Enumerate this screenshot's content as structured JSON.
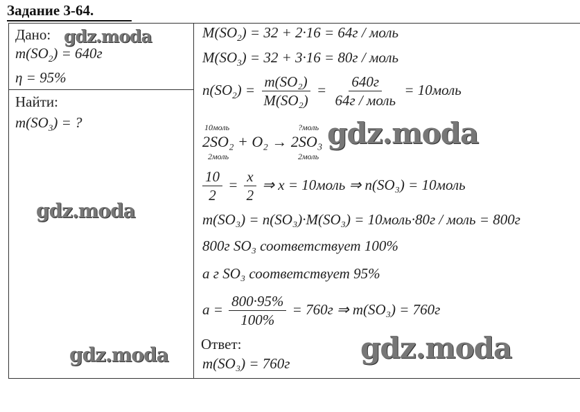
{
  "title": "Задание 3-64.",
  "given": {
    "label": "Дано:",
    "line1": "m(SO",
    "sub1": "2",
    "line1b": ") = 640г",
    "line2": "η = 95%"
  },
  "find": {
    "label": "Найти:",
    "line1": "m(SO",
    "sub1": "3",
    "line1b": ") = ?"
  },
  "solution": {
    "l1": {
      "a": "M(SO",
      "s": "2",
      "b": ") = 32 + 2·16 = 64г / моль"
    },
    "l2": {
      "a": "M(SO",
      "s": "3",
      "b": ") = 32 + 3·16 = 80г / моль"
    },
    "l3": {
      "a": "n(SO",
      "s": "2",
      "b": ") =",
      "num1": "m(SO₂)",
      "den1": "M(SO₂)",
      "eq": "=",
      "num2": "640г",
      "den2": "64г / моль",
      "c": "= 10моль"
    },
    "l4": {
      "eq": "2SO₂ + O₂ → 2SO₃",
      "above1": "10моль",
      "below1": "2моль",
      "above2": "?моль",
      "below2": "2моль"
    },
    "l5": {
      "num1": "10",
      "den1": "2",
      "eq": "=",
      "num2": "x",
      "den2": "2",
      "b": "⇒ x = 10моль ⇒ n(SO₃) = 10моль"
    },
    "l6": "m(SO₃) = n(SO₃)·M(SO₃) = 10моль·80г / моль = 800г",
    "l7": "800г SO₃ соответствует 100%",
    "l8": "а г SO₃ соответствует 95%",
    "l9": {
      "a": "a =",
      "num": "800·95%",
      "den": "100%",
      "b": "= 760г ⇒ m(SO₃) = 760г"
    },
    "answer_label": "Ответ:",
    "answer": "m(SO₃) = 760г"
  },
  "watermark": "gdz.moda"
}
